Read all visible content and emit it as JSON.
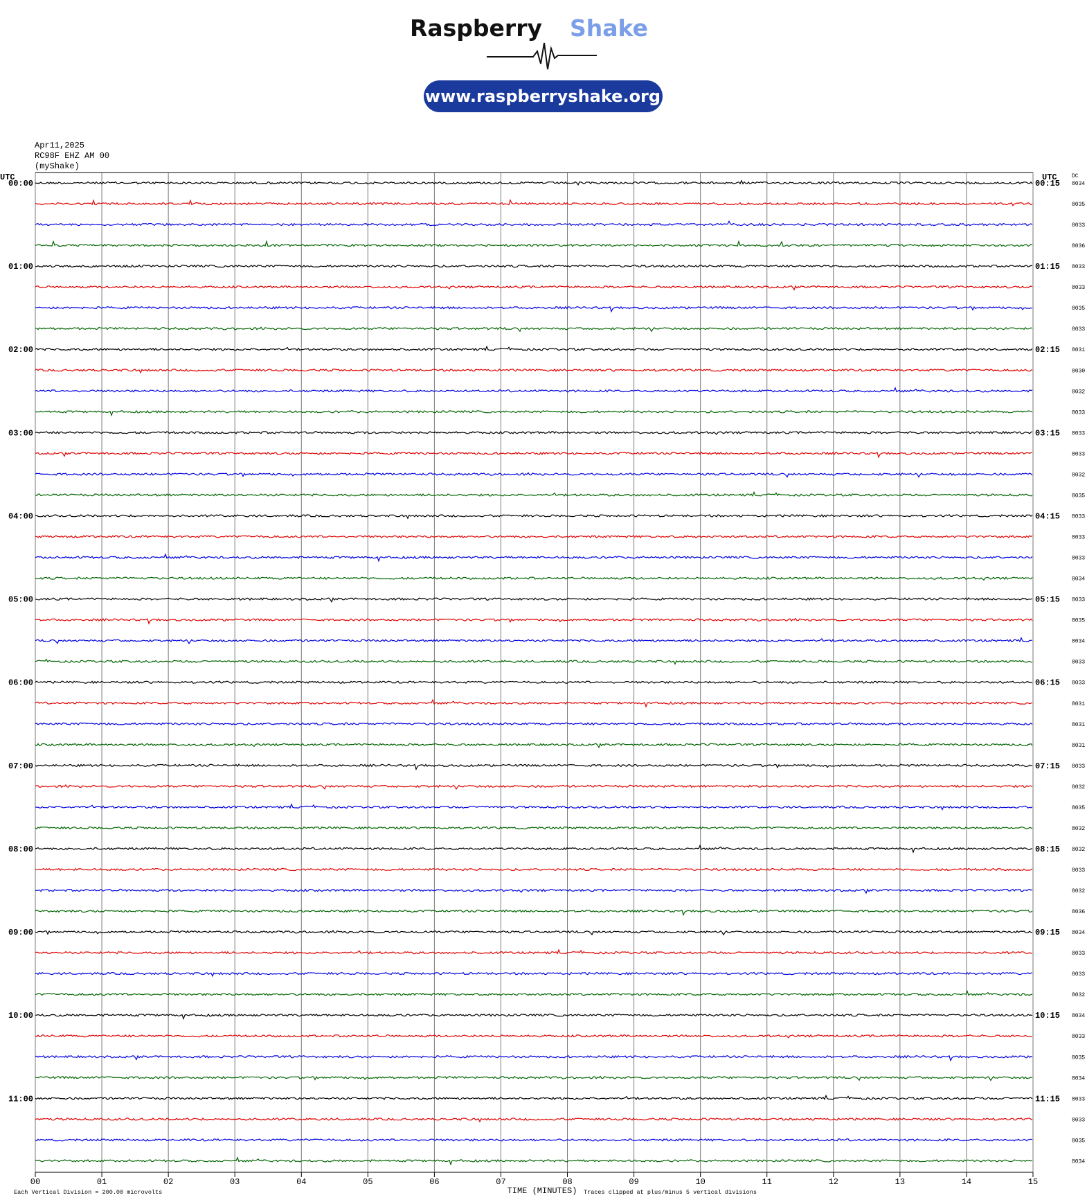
{
  "header": {
    "brand_left": "Raspberry",
    "brand_right": "Shake",
    "url": "www.raspberryshake.org"
  },
  "chart_data": {
    "type": "helicorder",
    "info": [
      "Apr11,2025",
      "RC98F EHZ AM 00",
      "(myShake)"
    ],
    "left_axis_title": "UTC",
    "right_axis_title": "UTC",
    "dc_title": "DC",
    "left_labels": [
      "00:00",
      null,
      null,
      null,
      "01:00",
      null,
      null,
      null,
      "02:00",
      null,
      null,
      null,
      "03:00",
      null,
      null,
      null,
      "04:00",
      null,
      null,
      null,
      "05:00",
      null,
      null,
      null,
      "06:00",
      null,
      null,
      null,
      "07:00",
      null,
      null,
      null,
      "08:00",
      null,
      null,
      null,
      "09:00",
      null,
      null,
      null,
      "10:00",
      null,
      null,
      null,
      "11:00",
      null,
      null,
      null
    ],
    "right_labels": [
      "00:15",
      null,
      null,
      null,
      "01:15",
      null,
      null,
      null,
      "02:15",
      null,
      null,
      null,
      "03:15",
      null,
      null,
      null,
      "04:15",
      null,
      null,
      null,
      "05:15",
      null,
      null,
      null,
      "06:15",
      null,
      null,
      null,
      "07:15",
      null,
      null,
      null,
      "08:15",
      null,
      null,
      null,
      "09:15",
      null,
      null,
      null,
      "10:15",
      null,
      null,
      null,
      "11:15",
      null,
      null,
      null
    ],
    "dc": [
      8034,
      8035,
      8033,
      8036,
      8033,
      8033,
      8035,
      8033,
      8031,
      8030,
      8032,
      8033,
      8033,
      8033,
      8032,
      8035,
      8033,
      8033,
      8033,
      8034,
      8033,
      8035,
      8034,
      8033,
      8033,
      8031,
      8031,
      8031,
      8033,
      8032,
      8035,
      8032,
      8032,
      8033,
      8032,
      8036,
      8034,
      8033,
      8033,
      8032,
      8034,
      8033,
      8035,
      8034,
      8033,
      8033,
      8035,
      8034
    ],
    "trace_colors": [
      "#000000",
      "#e00000",
      "#0000e0",
      "#006400"
    ],
    "xlim": [
      0,
      15
    ],
    "xticks": [
      {
        "value": 0,
        "label": "00"
      },
      {
        "value": 1,
        "label": "01"
      },
      {
        "value": 2,
        "label": "02"
      },
      {
        "value": 3,
        "label": "03"
      },
      {
        "value": 4,
        "label": "04"
      },
      {
        "value": 5,
        "label": "05"
      },
      {
        "value": 6,
        "label": "06"
      },
      {
        "value": 7,
        "label": "07"
      },
      {
        "value": 8,
        "label": "08"
      },
      {
        "value": 9,
        "label": "09"
      },
      {
        "value": 10,
        "label": "10"
      },
      {
        "value": 11,
        "label": "11"
      },
      {
        "value": 12,
        "label": "12"
      },
      {
        "value": 13,
        "label": "13"
      },
      {
        "value": 14,
        "label": "14"
      },
      {
        "value": 15,
        "label": "15"
      }
    ],
    "x_label": "TIME (MINUTES)",
    "scale_note": "Each Vertical Division =  200.00 microvolts",
    "clip_note": "Traces clipped at plus/minus 5 vertical divisions"
  }
}
